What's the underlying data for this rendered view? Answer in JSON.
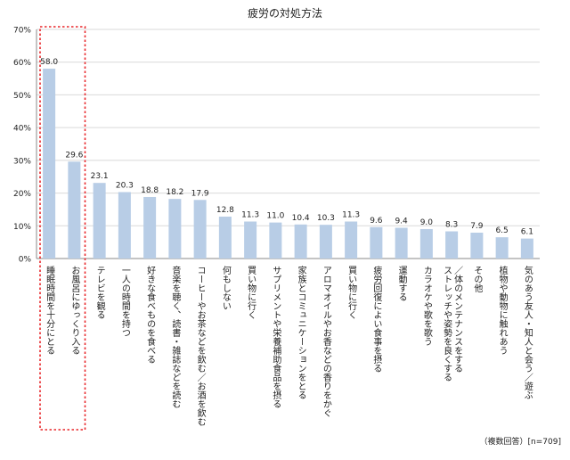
{
  "chart_data": {
    "type": "bar",
    "title": "疲労の対処方法",
    "note": "（複数回答）[n=709]",
    "ylim": [
      0,
      70
    ],
    "yticks": [
      "0%",
      "10%",
      "20%",
      "30%",
      "40%",
      "50%",
      "60%",
      "70%"
    ],
    "categories": [
      "睡眠時間を十分にとる",
      "お風呂にゆっくり入る",
      "テレビを観る",
      "一人の時間を持つ",
      "好きな食べものを食べる",
      "音楽を聴く、読書・雑誌などを読む",
      "コーヒーやお茶などを飲む／お酒を飲む",
      "何もしない",
      "買い物に行く",
      "サプリメントや栄養補助食品を摂る",
      "家族とコミュニケーションをとる",
      "アロマオイルやお香などの香りをかぐ",
      "買い物に行く",
      "疲労回復によい食事を摂る",
      "運動する",
      "カラオケや歌を歌う",
      "ストレッチや姿勢を良くする／体のメンテナンスをする",
      "その他",
      "植物や動物に触れあう",
      "気のあう友人・知人と会う／遊ぶ"
    ],
    "values": [
      58.0,
      29.6,
      23.1,
      20.3,
      18.8,
      18.2,
      17.9,
      12.8,
      11.3,
      11.0,
      10.4,
      10.3,
      11.3,
      9.6,
      9.4,
      9.0,
      8.3,
      7.9,
      6.5,
      6.1
    ],
    "value_labels": [
      "58.0",
      "29.6",
      "23.1",
      "20.3",
      "18.8",
      "18.2",
      "17.9",
      "12.8",
      "11.3",
      "11.0",
      "10.4",
      "10.3",
      "11.3",
      "9.6",
      "9.4",
      "9.0",
      "8.3",
      "7.9",
      "6.5",
      "6.1"
    ],
    "highlight_categories": [
      0,
      1
    ],
    "grid": true,
    "colors": {
      "bar": "#b8cde6",
      "highlight_box": "#e8262a",
      "grid": "#d9d9d9"
    }
  }
}
